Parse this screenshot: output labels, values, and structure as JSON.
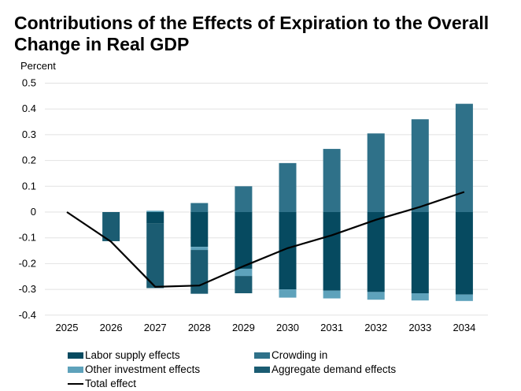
{
  "chart_data": {
    "type": "bar",
    "stacked": true,
    "title": "Contributions of the Effects of Expiration to the Overall Change in Real GDP",
    "ylabel": "Percent",
    "xlabel": "",
    "ylim": [
      -0.4,
      0.5
    ],
    "yticks": [
      "0.5",
      "0.4",
      "0.3",
      "0.2",
      "0.1",
      "0",
      "-0.1",
      "-0.2",
      "-0.3",
      "-0.4"
    ],
    "grid": true,
    "legend_position": "bottom",
    "categories": [
      "2025",
      "2026",
      "2027",
      "2028",
      "2029",
      "2030",
      "2031",
      "2032",
      "2033",
      "2034"
    ],
    "series": [
      {
        "name": "Labor supply effects",
        "color": "#064a60",
        "values": [
          0,
          0,
          -0.045,
          -0.135,
          -0.22,
          -0.3,
          -0.305,
          -0.31,
          -0.315,
          -0.32
        ]
      },
      {
        "name": "Other investment effects",
        "color": "#5ea2bb",
        "values": [
          0,
          0,
          0.005,
          -0.012,
          -0.028,
          -0.032,
          -0.03,
          -0.03,
          -0.028,
          -0.025
        ]
      },
      {
        "name": "Aggregate demand effects",
        "color": "#1b5c72",
        "values": [
          0,
          -0.113,
          -0.25,
          -0.17,
          -0.067,
          0,
          0,
          0,
          0,
          0
        ]
      },
      {
        "name": "Crowding in",
        "color": "#2f7189",
        "values": [
          0,
          0,
          0,
          0.035,
          0.1,
          0.19,
          0.245,
          0.305,
          0.36,
          0.42
        ]
      }
    ],
    "line": {
      "name": "Total effect",
      "color": "#000000",
      "values": [
        0,
        -0.115,
        -0.29,
        -0.285,
        -0.21,
        -0.14,
        -0.09,
        -0.03,
        0.02,
        0.078
      ]
    }
  }
}
